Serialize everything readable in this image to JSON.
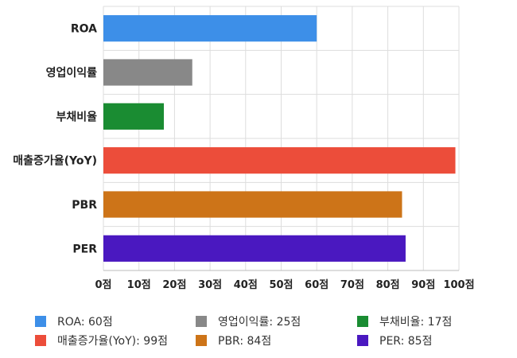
{
  "chart_data": {
    "type": "bar",
    "orientation": "horizontal",
    "categories": [
      "ROA",
      "영업이익률",
      "부채비율",
      "매출증가율(YoY)",
      "PBR",
      "PER"
    ],
    "values": [
      60,
      25,
      17,
      99,
      84,
      85
    ],
    "colors": [
      "#3d8fe8",
      "#888888",
      "#1a8c32",
      "#ec4d3a",
      "#cd7418",
      "#4a18c0"
    ],
    "xlim": [
      0,
      100
    ],
    "xticks": [
      0,
      10,
      20,
      30,
      40,
      50,
      60,
      70,
      80,
      90,
      100
    ],
    "tick_suffix": "점",
    "grid": true,
    "legend_position": "bottom"
  },
  "legend": [
    {
      "label": "ROA: 60점",
      "color": "#3d8fe8"
    },
    {
      "label": "영업이익률: 25점",
      "color": "#888888"
    },
    {
      "label": "부채비율: 17점",
      "color": "#1a8c32"
    },
    {
      "label": "매출증가율(YoY): 99점",
      "color": "#ec4d3a"
    },
    {
      "label": "PBR: 84점",
      "color": "#cd7418"
    },
    {
      "label": "PER: 85점",
      "color": "#4a18c0"
    }
  ]
}
